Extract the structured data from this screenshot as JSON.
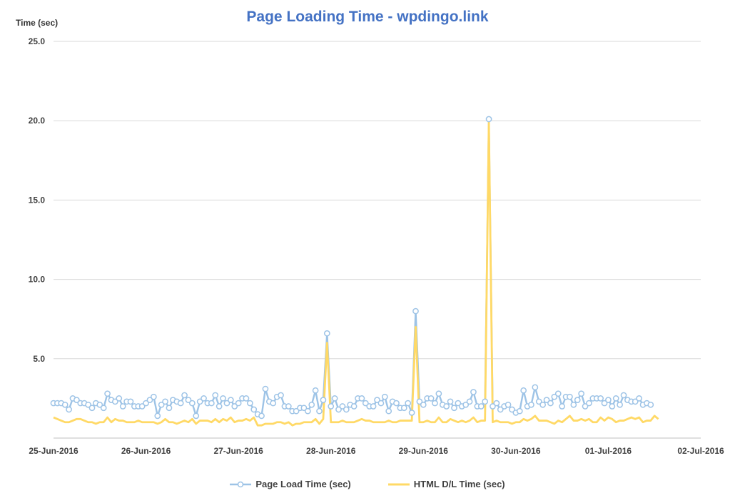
{
  "chart_data": {
    "type": "line",
    "title": "Page Loading Time - wpdingo.link",
    "ylabel": "Time (sec)",
    "ylim": [
      0,
      25
    ],
    "yticks": [
      "5.0",
      "10.0",
      "15.0",
      "20.0",
      "25.0"
    ],
    "xlim": [
      "2016-06-25",
      "2016-07-02"
    ],
    "xticks": [
      "25-Jun-2016",
      "26-Jun-2016",
      "27-Jun-2016",
      "28-Jun-2016",
      "29-Jun-2016",
      "30-Jun-2016",
      "01-Jul-2016",
      "02-Jul-2016"
    ],
    "grid": true,
    "legend_position": "bottom",
    "x_start": "2016-06-25T00:00",
    "x_interval_hours": 1,
    "series": [
      {
        "name": "Page Load Time (sec)",
        "color": "#9DC3E6",
        "marker": "circle",
        "values": [
          2.2,
          2.2,
          2.2,
          2.1,
          1.8,
          2.5,
          2.4,
          2.2,
          2.2,
          2.1,
          1.9,
          2.2,
          2.1,
          1.9,
          2.8,
          2.4,
          2.3,
          2.5,
          2.0,
          2.3,
          2.3,
          2.0,
          2.0,
          2.0,
          2.2,
          2.4,
          2.6,
          1.4,
          2.1,
          2.3,
          1.9,
          2.4,
          2.3,
          2.2,
          2.7,
          2.4,
          2.2,
          1.4,
          2.3,
          2.5,
          2.2,
          2.2,
          2.7,
          2.0,
          2.5,
          2.2,
          2.4,
          2.0,
          2.2,
          2.5,
          2.5,
          2.2,
          1.8,
          1.5,
          1.4,
          3.1,
          2.3,
          2.2,
          2.6,
          2.7,
          2.0,
          2.0,
          1.7,
          1.7,
          1.9,
          1.9,
          1.7,
          2.1,
          3.0,
          1.7,
          2.4,
          6.6,
          2.0,
          2.5,
          1.8,
          2.0,
          1.8,
          2.1,
          2.0,
          2.5,
          2.5,
          2.2,
          2.0,
          2.0,
          2.4,
          2.2,
          2.6,
          1.7,
          2.3,
          2.2,
          1.9,
          1.9,
          2.2,
          1.6,
          8.0,
          2.3,
          2.1,
          2.5,
          2.5,
          2.2,
          2.8,
          2.1,
          2.0,
          2.3,
          1.9,
          2.2,
          2.0,
          2.1,
          2.3,
          2.9,
          2.0,
          2.0,
          2.3,
          20.1,
          2.0,
          2.2,
          1.8,
          2.0,
          2.1,
          1.8,
          1.6,
          1.7,
          3.0,
          2.0,
          2.1,
          3.2,
          2.3,
          2.1,
          2.4,
          2.2,
          2.6,
          2.8,
          2.0,
          2.6,
          2.6,
          2.1,
          2.4,
          2.8,
          2.0,
          2.2,
          2.5,
          2.5,
          2.5,
          2.2,
          2.4,
          2.0,
          2.5,
          2.1,
          2.7,
          2.4,
          2.3,
          2.3,
          2.5,
          2.1,
          2.2,
          2.1
        ]
      },
      {
        "name": "HTML D/L Time (sec)",
        "color": "#FFD966",
        "marker": "none",
        "values": [
          1.3,
          1.2,
          1.1,
          1.0,
          1.0,
          1.1,
          1.2,
          1.2,
          1.1,
          1.0,
          1.0,
          0.9,
          1.0,
          1.0,
          1.3,
          1.0,
          1.2,
          1.1,
          1.1,
          1.0,
          1.0,
          1.0,
          1.1,
          1.0,
          1.0,
          1.0,
          1.0,
          0.9,
          1.0,
          1.2,
          1.0,
          1.0,
          0.9,
          1.0,
          1.1,
          1.0,
          1.2,
          0.9,
          1.1,
          1.1,
          1.1,
          1.0,
          1.2,
          1.0,
          1.2,
          1.1,
          1.3,
          1.0,
          1.1,
          1.1,
          1.2,
          1.1,
          1.3,
          0.8,
          0.8,
          0.9,
          0.9,
          0.9,
          1.0,
          1.0,
          0.9,
          1.0,
          0.8,
          0.9,
          0.9,
          1.0,
          1.0,
          1.0,
          1.2,
          0.9,
          1.2,
          6.0,
          1.0,
          1.0,
          1.0,
          1.1,
          1.0,
          1.0,
          1.0,
          1.1,
          1.2,
          1.1,
          1.1,
          1.0,
          1.0,
          1.0,
          1.0,
          1.1,
          1.0,
          1.0,
          1.1,
          1.1,
          1.1,
          1.1,
          7.0,
          1.0,
          1.0,
          1.1,
          1.0,
          1.0,
          1.3,
          1.0,
          1.0,
          1.2,
          1.1,
          1.0,
          1.1,
          1.0,
          1.1,
          1.3,
          1.0,
          1.1,
          1.1,
          19.9,
          1.0,
          1.1,
          1.0,
          1.0,
          1.0,
          0.9,
          1.0,
          1.0,
          1.2,
          1.1,
          1.2,
          1.4,
          1.1,
          1.1,
          1.1,
          1.0,
          0.9,
          1.1,
          1.0,
          1.2,
          1.4,
          1.1,
          1.1,
          1.2,
          1.1,
          1.2,
          1.0,
          1.0,
          1.3,
          1.1,
          1.3,
          1.2,
          1.0,
          1.1,
          1.1,
          1.2,
          1.3,
          1.2,
          1.3,
          1.0,
          1.1,
          1.1,
          1.4,
          1.2
        ]
      }
    ]
  }
}
